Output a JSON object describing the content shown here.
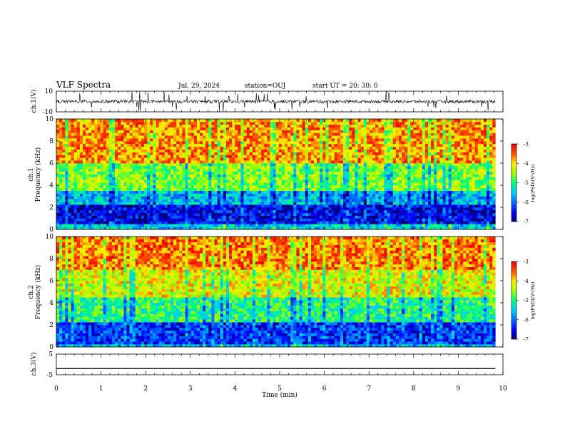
{
  "header": {
    "title": "VLF Spectra",
    "date": "Jul. 29, 2024",
    "station": "station=OUJ",
    "start": "start  UT =   20: 30: 0"
  },
  "chart_data": [
    {
      "type": "line",
      "panel": "ch1-waveform",
      "ylabel": "ch.1(V)",
      "ylim": [
        -10,
        10
      ],
      "yticks": [
        "10",
        "-10"
      ],
      "xlim": [
        0,
        10
      ],
      "description_values": "noisy waveform centred near 0 V, amplitude ~ +/-2 V with spikes to +/-10 V",
      "baseline": 0
    },
    {
      "type": "heatmap",
      "panel": "ch1-spectrogram",
      "ylabel": "ch.1\nFrequency (kHz)",
      "ylabel_lines": [
        "ch.1",
        "Frequency (kHz)"
      ],
      "ylim": [
        0,
        10
      ],
      "yticks": [
        "0",
        "2",
        "4",
        "6",
        "8",
        "10"
      ],
      "xlim": [
        0,
        10
      ],
      "data_end_min": 9.83,
      "colorbar": {
        "label": "log(PSD)(V²/Hz)",
        "range": [
          -7,
          -3
        ],
        "ticks": [
          "-3",
          "-4",
          "-5",
          "-6",
          "-7"
        ]
      },
      "bands_khz": [
        {
          "from": 0,
          "to": 0.4,
          "level": -5.5
        },
        {
          "from": 0.4,
          "to": 2.2,
          "level": -6.6
        },
        {
          "from": 2.2,
          "to": 3.6,
          "level": -5.6
        },
        {
          "from": 3.6,
          "to": 6.0,
          "level": -4.6
        },
        {
          "from": 6.0,
          "to": 10,
          "level": -3.7
        }
      ]
    },
    {
      "type": "heatmap",
      "panel": "ch2-spectrogram",
      "ylabel": "ch.2\nFrequency (kHz)",
      "ylabel_lines": [
        "ch.2",
        "Frequency (kHz)"
      ],
      "ylim": [
        0,
        10
      ],
      "yticks": [
        "0",
        "2",
        "4",
        "6",
        "8",
        "10"
      ],
      "xlim": [
        0,
        10
      ],
      "data_end_min": 9.83,
      "colorbar": {
        "label": "log(PSD)(V²/Hz)",
        "range": [
          -7,
          -3
        ],
        "ticks": [
          "-3",
          "-4",
          "-5",
          "-6",
          "-7"
        ]
      },
      "bands_khz": [
        {
          "from": 0,
          "to": 0.3,
          "level": -5.6
        },
        {
          "from": 0.3,
          "to": 2.2,
          "level": -6.3
        },
        {
          "from": 2.2,
          "to": 4.5,
          "level": -5.0
        },
        {
          "from": 4.5,
          "to": 7.0,
          "level": -4.2
        },
        {
          "from": 7.0,
          "to": 10,
          "level": -3.6
        }
      ]
    },
    {
      "type": "line",
      "panel": "ch3-waveform",
      "ylabel": "ch.3(V)",
      "ylim": [
        -5,
        5
      ],
      "yticks": [
        "5",
        "-5"
      ],
      "xlim": [
        0,
        10
      ],
      "constant_value": -2
    }
  ],
  "xaxis": {
    "label": "Time (min)",
    "ticks": [
      "0",
      "1",
      "2",
      "3",
      "4",
      "5",
      "6",
      "7",
      "8",
      "9",
      "10"
    ]
  }
}
